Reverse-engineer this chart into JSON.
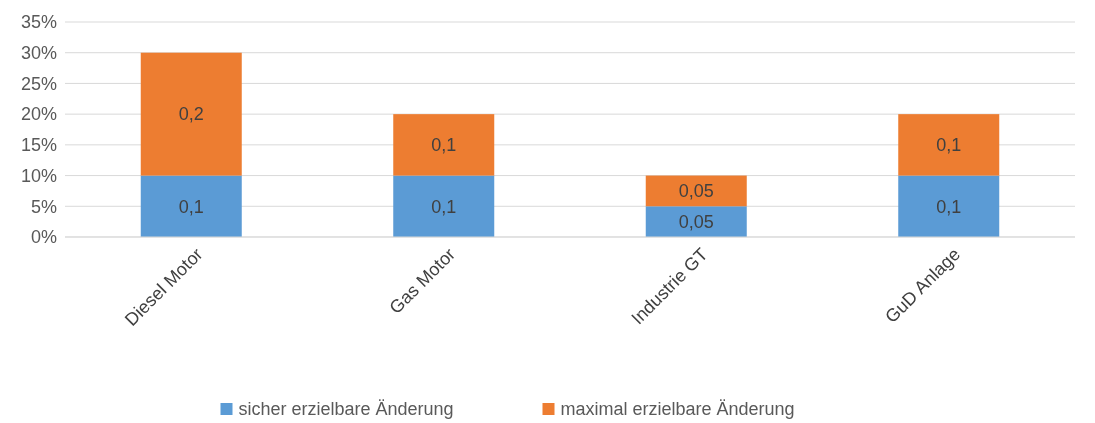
{
  "chart_data": {
    "type": "bar",
    "stacked": true,
    "categories": [
      "Diesel Motor",
      "Gas Motor",
      "Industrie GT",
      "GuD Anlage"
    ],
    "series": [
      {
        "name": "sicher erzielbare Änderung",
        "color": "#5b9bd5",
        "values": [
          0.1,
          0.1,
          0.05,
          0.1
        ],
        "value_labels": [
          "0,1",
          "0,1",
          "0,05",
          "0,1"
        ]
      },
      {
        "name": "maximal erzielbare Änderung",
        "color": "#ed7d31",
        "values": [
          0.2,
          0.1,
          0.05,
          0.1
        ],
        "value_labels": [
          "0,2",
          "0,1",
          "0,05",
          "0,1"
        ]
      }
    ],
    "ylim": [
      0,
      0.35
    ],
    "yticks": [
      {
        "value": 0,
        "label": "0%"
      },
      {
        "value": 0.05,
        "label": "5%"
      },
      {
        "value": 0.1,
        "label": "10%"
      },
      {
        "value": 0.15,
        "label": "15%"
      },
      {
        "value": 0.2,
        "label": "20%"
      },
      {
        "value": 0.25,
        "label": "25%"
      },
      {
        "value": 0.3,
        "label": "30%"
      },
      {
        "value": 0.35,
        "label": "35%"
      }
    ],
    "grid": "y",
    "legend": "bottom"
  }
}
